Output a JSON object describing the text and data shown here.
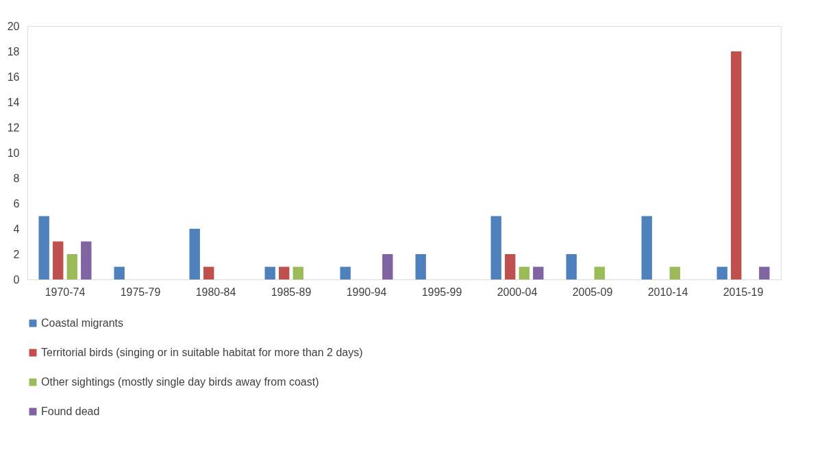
{
  "chart_data": {
    "type": "bar",
    "categories": [
      "1970-74",
      "1975-79",
      "1980-84",
      "1985-89",
      "1990-94",
      "1995-99",
      "2000-04",
      "2005-09",
      "2010-14",
      "2015-19"
    ],
    "series": [
      {
        "name": "Coastal migrants",
        "color": "#4f81bd",
        "values": [
          5,
          1,
          4,
          1,
          1,
          2,
          5,
          2,
          5,
          1
        ]
      },
      {
        "name": "Territorial birds (singing or in suitable habitat for more than 2 days)",
        "color": "#c0504d",
        "values": [
          3,
          0,
          1,
          1,
          0,
          0,
          2,
          0,
          0,
          18
        ]
      },
      {
        "name": "Other sightings (mostly single day birds away from coast)",
        "color": "#9bbb59",
        "values": [
          2,
          0,
          0,
          1,
          0,
          0,
          1,
          1,
          1,
          0
        ]
      },
      {
        "name": "Found dead",
        "color": "#8064a2",
        "values": [
          3,
          0,
          0,
          0,
          2,
          0,
          1,
          0,
          0,
          1
        ]
      }
    ],
    "ylim": [
      0,
      20
    ],
    "yticks": [
      0,
      2,
      4,
      6,
      8,
      10,
      12,
      14,
      16,
      18,
      20
    ],
    "grid": false,
    "legend": "bottom"
  }
}
